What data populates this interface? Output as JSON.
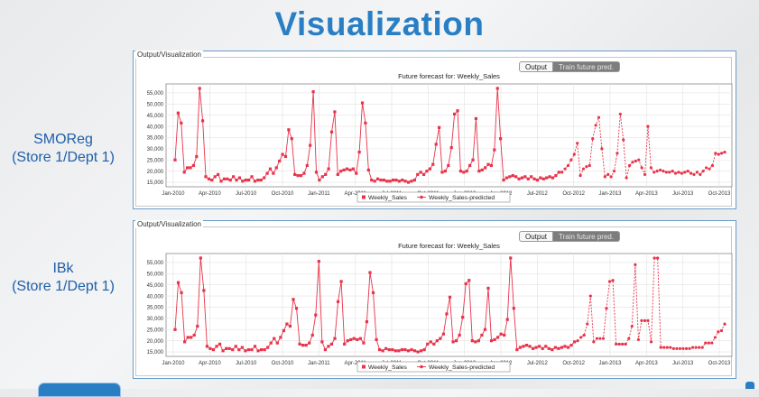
{
  "page": {
    "title": "Visualization"
  },
  "colors": {
    "title": "#2a7fc4",
    "series": "#e8334a",
    "label": "#1e5fa8"
  },
  "panels": [
    {
      "id": "smoreg",
      "side_label_line1": "SMOReg",
      "side_label_line2": "(Store 1/Dept 1)",
      "panel_title": "Output/Visualization",
      "tabs": {
        "output": "Output",
        "train": "Train future pred."
      },
      "chart_data": {
        "type": "line",
        "title": "Future forecast for: Weekly_Sales",
        "x_ticks": [
          "Jan-2010",
          "Apr-2010",
          "Jul-2010",
          "Oct-2010",
          "Jan-2011",
          "Apr-2011",
          "Jul-2011",
          "Oct-2011",
          "Jan-2012",
          "Apr-2012",
          "Jul-2012",
          "Oct-2012",
          "Jan-2013",
          "Apr-2013",
          "Jul-2013",
          "Oct-2013"
        ],
        "y_ticks": [
          "15,000",
          "20,000",
          "25,000",
          "30,000",
          "35,000",
          "40,000",
          "45,000",
          "50,000",
          "55,000"
        ],
        "ylim": [
          13000,
          59000
        ],
        "legend": [
          "Weekly_Sales",
          "Weekly_Sales-predicted"
        ],
        "series": [
          {
            "name": "Weekly_Sales",
            "style": "solid",
            "marker": "square",
            "values": [
              25000,
              46000,
              41500,
              19500,
              21500,
              21500,
              22500,
              26500,
              57000,
              42500,
              17500,
              16500,
              16000,
              17500,
              18500,
              15500,
              16500,
              16500,
              16000,
              17500,
              16000,
              17000,
              15500,
              16000,
              16000,
              17500,
              15500,
              16000,
              16000,
              17000,
              19000,
              21000,
              19000,
              21500,
              24500,
              27500,
              26500,
              38500,
              34500,
              18500,
              18000,
              18000,
              19000,
              22500,
              31500,
              55500,
              19500,
              16000,
              17500,
              18500,
              21000,
              37500,
              46500,
              18500,
              20000,
              20500,
              21000,
              20500,
              21000,
              19000,
              28500,
              50500,
              41500,
              20500,
              16000,
              15500,
              16500,
              16000,
              16000,
              15500,
              15500,
              16000,
              16000,
              15500,
              16000,
              15500,
              15000,
              15500,
              16000,
              18500,
              19500,
              18500,
              20000,
              21000,
              23000,
              32000,
              39500,
              19500,
              20000,
              22500,
              30500,
              45500,
              47000,
              20000,
              19500,
              20000,
              22500,
              25000,
              43500,
              20000,
              20500,
              21500,
              23000,
              22500,
              29500,
              57000,
              34500,
              16000,
              17000,
              17500,
              18000,
              17500,
              16500,
              17000,
              17500,
              16500,
              17500,
              16500,
              16000,
              17000,
              16500,
              17000,
              17500,
              17000,
              18000,
              19500
            ]
          },
          {
            "name": "Weekly_Sales-predicted",
            "style": "dashed",
            "marker": "circle",
            "values": [
              19500,
              21000,
              22500,
              25000,
              27500,
              32500,
              18000,
              21000,
              22000,
              22500,
              34500,
              40500,
              44000,
              30000,
              17500,
              18500,
              17500,
              20000,
              28000,
              45500,
              34000,
              17000,
              22500,
              24000,
              24500,
              25000,
              21500,
              18500,
              40000,
              21500,
              19500,
              20000,
              20500,
              20000,
              19500,
              19500,
              20000,
              19000,
              19500,
              19000,
              19500,
              20000,
              19000,
              18500,
              19500,
              18500,
              20000,
              21500,
              21000,
              22500,
              28000,
              27500,
              28000,
              28500
            ]
          }
        ]
      }
    },
    {
      "id": "ibk",
      "side_label_line1": "IBk",
      "side_label_line2": "(Store 1/Dept 1)",
      "panel_title": "Output/Visualization",
      "tabs": {
        "output": "Output",
        "train": "Train future pred."
      },
      "chart_data": {
        "type": "line",
        "title": "Future forecast for: Weekly_Sales",
        "x_ticks": [
          "Jan-2010",
          "Apr-2010",
          "Jul-2010",
          "Oct-2010",
          "Jan-2011",
          "Apr-2011",
          "Jul-2011",
          "Oct-2011",
          "Jan-2012",
          "Apr-2012",
          "Jul-2012",
          "Oct-2012",
          "Jan-2013",
          "Apr-2013",
          "Jul-2013",
          "Oct-2013"
        ],
        "y_ticks": [
          "15,000",
          "20,000",
          "25,000",
          "30,000",
          "35,000",
          "40,000",
          "45,000",
          "50,000",
          "55,000"
        ],
        "ylim": [
          13000,
          59000
        ],
        "legend": [
          "Weekly_Sales",
          "Weekly_Sales-predicted"
        ],
        "series": [
          {
            "name": "Weekly_Sales",
            "style": "solid",
            "marker": "square",
            "values": [
              25000,
              46000,
              41500,
              19500,
              21500,
              21500,
              22500,
              26500,
              57000,
              42500,
              17500,
              16500,
              16000,
              17500,
              18500,
              15500,
              16500,
              16500,
              16000,
              17500,
              16000,
              17000,
              15500,
              16000,
              16000,
              17500,
              15500,
              16000,
              16000,
              17000,
              19000,
              21000,
              19000,
              21500,
              24500,
              27500,
              26500,
              38500,
              34500,
              18500,
              18000,
              18000,
              19000,
              22500,
              31500,
              55500,
              19500,
              16000,
              17500,
              18500,
              21000,
              37500,
              46500,
              18500,
              20000,
              20500,
              21000,
              20500,
              21000,
              19000,
              28500,
              50500,
              41500,
              20500,
              16000,
              15500,
              16500,
              16000,
              16000,
              15500,
              15500,
              16000,
              16000,
              15500,
              16000,
              15500,
              15000,
              15500,
              16000,
              18500,
              19500,
              18500,
              20000,
              21000,
              23000,
              32000,
              39500,
              19500,
              20000,
              22500,
              30500,
              45500,
              47000,
              20000,
              19500,
              20000,
              22500,
              25000,
              43500,
              20000,
              20500,
              21500,
              23000,
              22500,
              29500,
              57000,
              34500,
              16000,
              17000,
              17500,
              18000,
              17500,
              16500,
              17000,
              17500,
              16500,
              17500,
              16500,
              16000,
              17000,
              16500,
              17000,
              17500,
              17000,
              18000,
              19500
            ]
          },
          {
            "name": "Weekly_Sales-predicted",
            "style": "dashed",
            "marker": "circle",
            "values": [
              20000,
              21500,
              22500,
              27500,
              40000,
              19500,
              21000,
              21000,
              21000,
              34500,
              46500,
              47000,
              18500,
              18500,
              18500,
              18500,
              21000,
              26500,
              54000,
              20500,
              29000,
              29000,
              29000,
              19500,
              57000,
              57000,
              17000,
              17000,
              17000,
              17000,
              16500,
              16500,
              16500,
              16500,
              16500,
              16500,
              17000,
              17000,
              17000,
              17000,
              19000,
              19000,
              19000,
              21500,
              24000,
              24500,
              27500
            ]
          }
        ]
      }
    }
  ]
}
